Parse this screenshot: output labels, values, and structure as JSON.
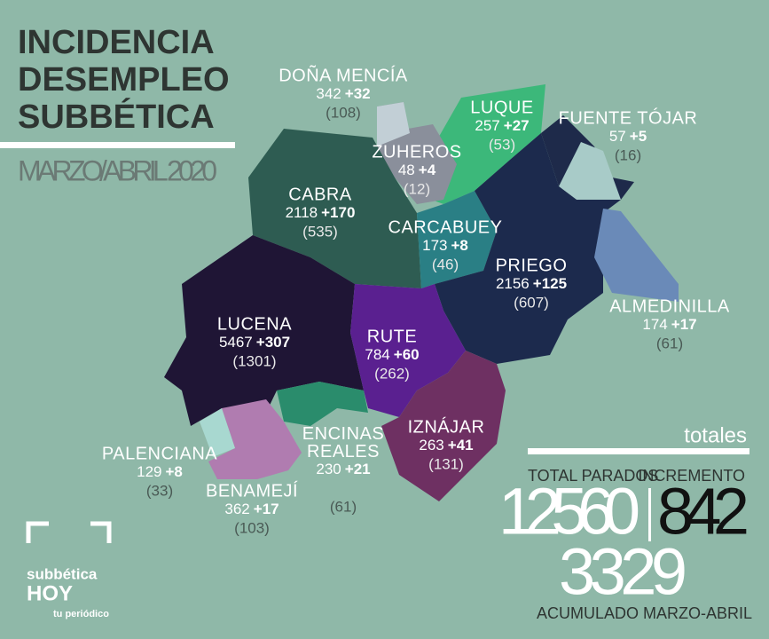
{
  "header": {
    "title": [
      "INCIDENCIA",
      "DESEMPLEO",
      "SUBBÉTICA"
    ],
    "subtitle": "MARZO/ABRIL 2020"
  },
  "regions": [
    {
      "name": "DOÑA MENCÍA",
      "parados": "342",
      "incremento": "+32",
      "acumulado": "(108)"
    },
    {
      "name": "LUQUE",
      "parados": "257",
      "incremento": "+27",
      "acumulado": "(53)"
    },
    {
      "name": "FUENTE TÓJAR",
      "parados": "57",
      "incremento": "+5",
      "acumulado": "(16)"
    },
    {
      "name": "ZUHEROS",
      "parados": "48",
      "incremento": "+4",
      "acumulado": "(12)"
    },
    {
      "name": "CABRA",
      "parados": "2118",
      "incremento": "+170",
      "acumulado": "(535)"
    },
    {
      "name": "CARCABUEY",
      "parados": "173",
      "incremento": "+8",
      "acumulado": "(46)"
    },
    {
      "name": "PRIEGO",
      "parados": "2156",
      "incremento": "+125",
      "acumulado": "(607)"
    },
    {
      "name": "ALMEDINILLA",
      "parados": "174",
      "incremento": "+17",
      "acumulado": "(61)"
    },
    {
      "name": "LUCENA",
      "parados": "5467",
      "incremento": "+307",
      "acumulado": "(1301)"
    },
    {
      "name": "RUTE",
      "parados": "784",
      "incremento": "+60",
      "acumulado": "(262)"
    },
    {
      "name": "IZNÁJAR",
      "parados": "263",
      "incremento": "+41",
      "acumulado": "(131)"
    },
    {
      "name": "PALENCIANA",
      "parados": "129",
      "incremento": "+8",
      "acumulado": "(33)"
    },
    {
      "name": "ENCINAS REALES",
      "parados": "230",
      "incremento": "+21",
      "acumulado": "(61)"
    },
    {
      "name": "BENAMEJÍ",
      "parados": "362",
      "incremento": "+17",
      "acumulado": "(103)"
    }
  ],
  "totals": {
    "heading": "totales",
    "total_parados_label": "TOTAL PARADOS",
    "total_parados": "12560",
    "incremento_label": "INCREMENTO",
    "incremento": "842",
    "acumulado": "3329",
    "acumulado_label": "ACUMULADO MARZO-ABRIL"
  },
  "logo": {
    "brand": "subbética",
    "hoy": "HOY",
    "tagline": "tu periódico"
  }
}
